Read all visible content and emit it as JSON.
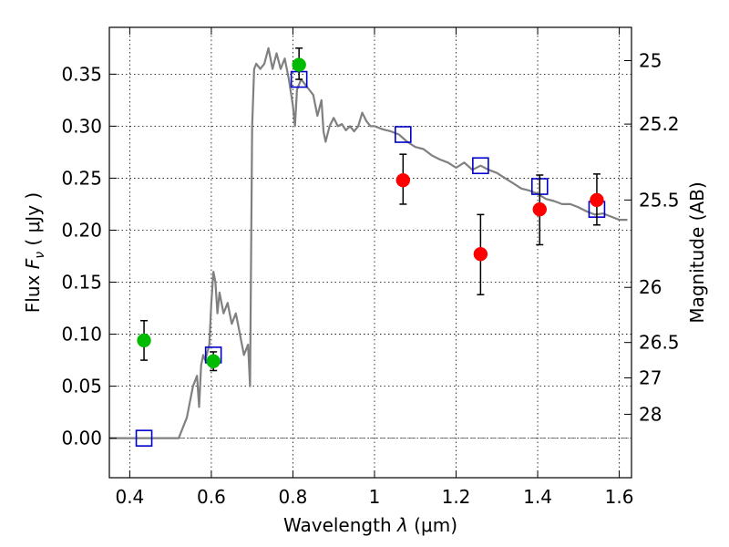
{
  "chart_data": {
    "type": "scatter",
    "xlabel_text": "Wavelength",
    "xlabel_symbol": "λ",
    "xlabel_unit": "(μm)",
    "ylabel_text": "Flux",
    "ylabel_symbol": "F",
    "ylabel_subscript": "ν",
    "ylabel_unit": "( μJy )",
    "y2label": "Magnitude (AB)",
    "xlim": [
      0.35,
      1.63
    ],
    "ylim": [
      -0.038,
      0.395
    ],
    "grid": true,
    "x_ticks": [
      0.4,
      0.6,
      0.8,
      1.0,
      1.2,
      1.4,
      1.6
    ],
    "x_tick_labels": [
      "0.4",
      "0.6",
      "0.8",
      "1",
      "1.2",
      "1.4",
      "1.6"
    ],
    "y_ticks": [
      0.0,
      0.05,
      0.1,
      0.15,
      0.2,
      0.25,
      0.3,
      0.35
    ],
    "y_tick_labels": [
      "0.00",
      "0.05",
      "0.10",
      "0.15",
      "0.20",
      "0.25",
      "0.30",
      "0.35"
    ],
    "y2_ticks": [
      {
        "flux": 0.363,
        "label": "25"
      },
      {
        "flux": 0.302,
        "label": "25.2"
      },
      {
        "flux": 0.229,
        "label": "25.5"
      },
      {
        "flux": 0.145,
        "label": "26"
      },
      {
        "flux": 0.092,
        "label": "26.5"
      },
      {
        "flux": 0.058,
        "label": "27"
      },
      {
        "flux": 0.023,
        "label": "28"
      }
    ],
    "series": [
      {
        "type": "line",
        "color": "#808080",
        "x": [
          0.35,
          0.52,
          0.54,
          0.555,
          0.565,
          0.57,
          0.575,
          0.58,
          0.585,
          0.59,
          0.595,
          0.6,
          0.605,
          0.61,
          0.615,
          0.62,
          0.63,
          0.64,
          0.65,
          0.66,
          0.67,
          0.68,
          0.69,
          0.695,
          0.7,
          0.705,
          0.71,
          0.72,
          0.73,
          0.74,
          0.75,
          0.76,
          0.77,
          0.78,
          0.79,
          0.8,
          0.805,
          0.81,
          0.815,
          0.82,
          0.83,
          0.84,
          0.85,
          0.86,
          0.87,
          0.875,
          0.88,
          0.89,
          0.9,
          0.91,
          0.92,
          0.93,
          0.94,
          0.95,
          0.96,
          0.97,
          0.98,
          0.99,
          1.0,
          1.02,
          1.04,
          1.06,
          1.08,
          1.1,
          1.12,
          1.14,
          1.16,
          1.18,
          1.2,
          1.22,
          1.24,
          1.26,
          1.28,
          1.3,
          1.32,
          1.34,
          1.36,
          1.38,
          1.4,
          1.42,
          1.44,
          1.46,
          1.48,
          1.5,
          1.52,
          1.54,
          1.56,
          1.58,
          1.6,
          1.62
        ],
        "y": [
          0.0,
          0.0,
          0.02,
          0.05,
          0.06,
          0.03,
          0.07,
          0.08,
          0.075,
          0.082,
          0.09,
          0.13,
          0.16,
          0.15,
          0.12,
          0.14,
          0.12,
          0.13,
          0.11,
          0.12,
          0.1,
          0.08,
          0.09,
          0.05,
          0.3,
          0.355,
          0.36,
          0.355,
          0.36,
          0.375,
          0.355,
          0.37,
          0.355,
          0.365,
          0.345,
          0.32,
          0.3,
          0.335,
          0.34,
          0.345,
          0.34,
          0.335,
          0.33,
          0.31,
          0.325,
          0.295,
          0.285,
          0.3,
          0.308,
          0.3,
          0.302,
          0.296,
          0.3,
          0.295,
          0.3,
          0.313,
          0.305,
          0.3,
          0.3,
          0.297,
          0.295,
          0.292,
          0.285,
          0.28,
          0.278,
          0.272,
          0.268,
          0.265,
          0.26,
          0.265,
          0.258,
          0.262,
          0.258,
          0.255,
          0.25,
          0.245,
          0.24,
          0.238,
          0.235,
          0.23,
          0.228,
          0.225,
          0.225,
          0.222,
          0.218,
          0.215,
          0.216,
          0.213,
          0.21,
          0.21
        ]
      },
      {
        "type": "markers-open-square",
        "color": "#0000cc",
        "x": [
          0.435,
          0.605,
          0.815,
          1.07,
          1.26,
          1.405,
          1.545
        ],
        "y": [
          0.0,
          0.08,
          0.345,
          0.292,
          0.262,
          0.242,
          0.22
        ]
      },
      {
        "type": "markers-filled-circle",
        "color": "#00bb00",
        "x": [
          0.435,
          0.605,
          0.815
        ],
        "y": [
          0.094,
          0.074,
          0.359
        ],
        "yerr_low": [
          0.019,
          0.009,
          0.014
        ],
        "yerr_high": [
          0.019,
          0.009,
          0.016
        ]
      },
      {
        "type": "markers-filled-circle",
        "color": "#ff0000",
        "x": [
          1.07,
          1.26,
          1.405,
          1.545
        ],
        "y": [
          0.248,
          0.177,
          0.22,
          0.229
        ],
        "yerr_low": [
          0.023,
          0.039,
          0.034,
          0.024
        ],
        "yerr_high": [
          0.025,
          0.038,
          0.033,
          0.025
        ]
      }
    ],
    "zero_line": true
  }
}
